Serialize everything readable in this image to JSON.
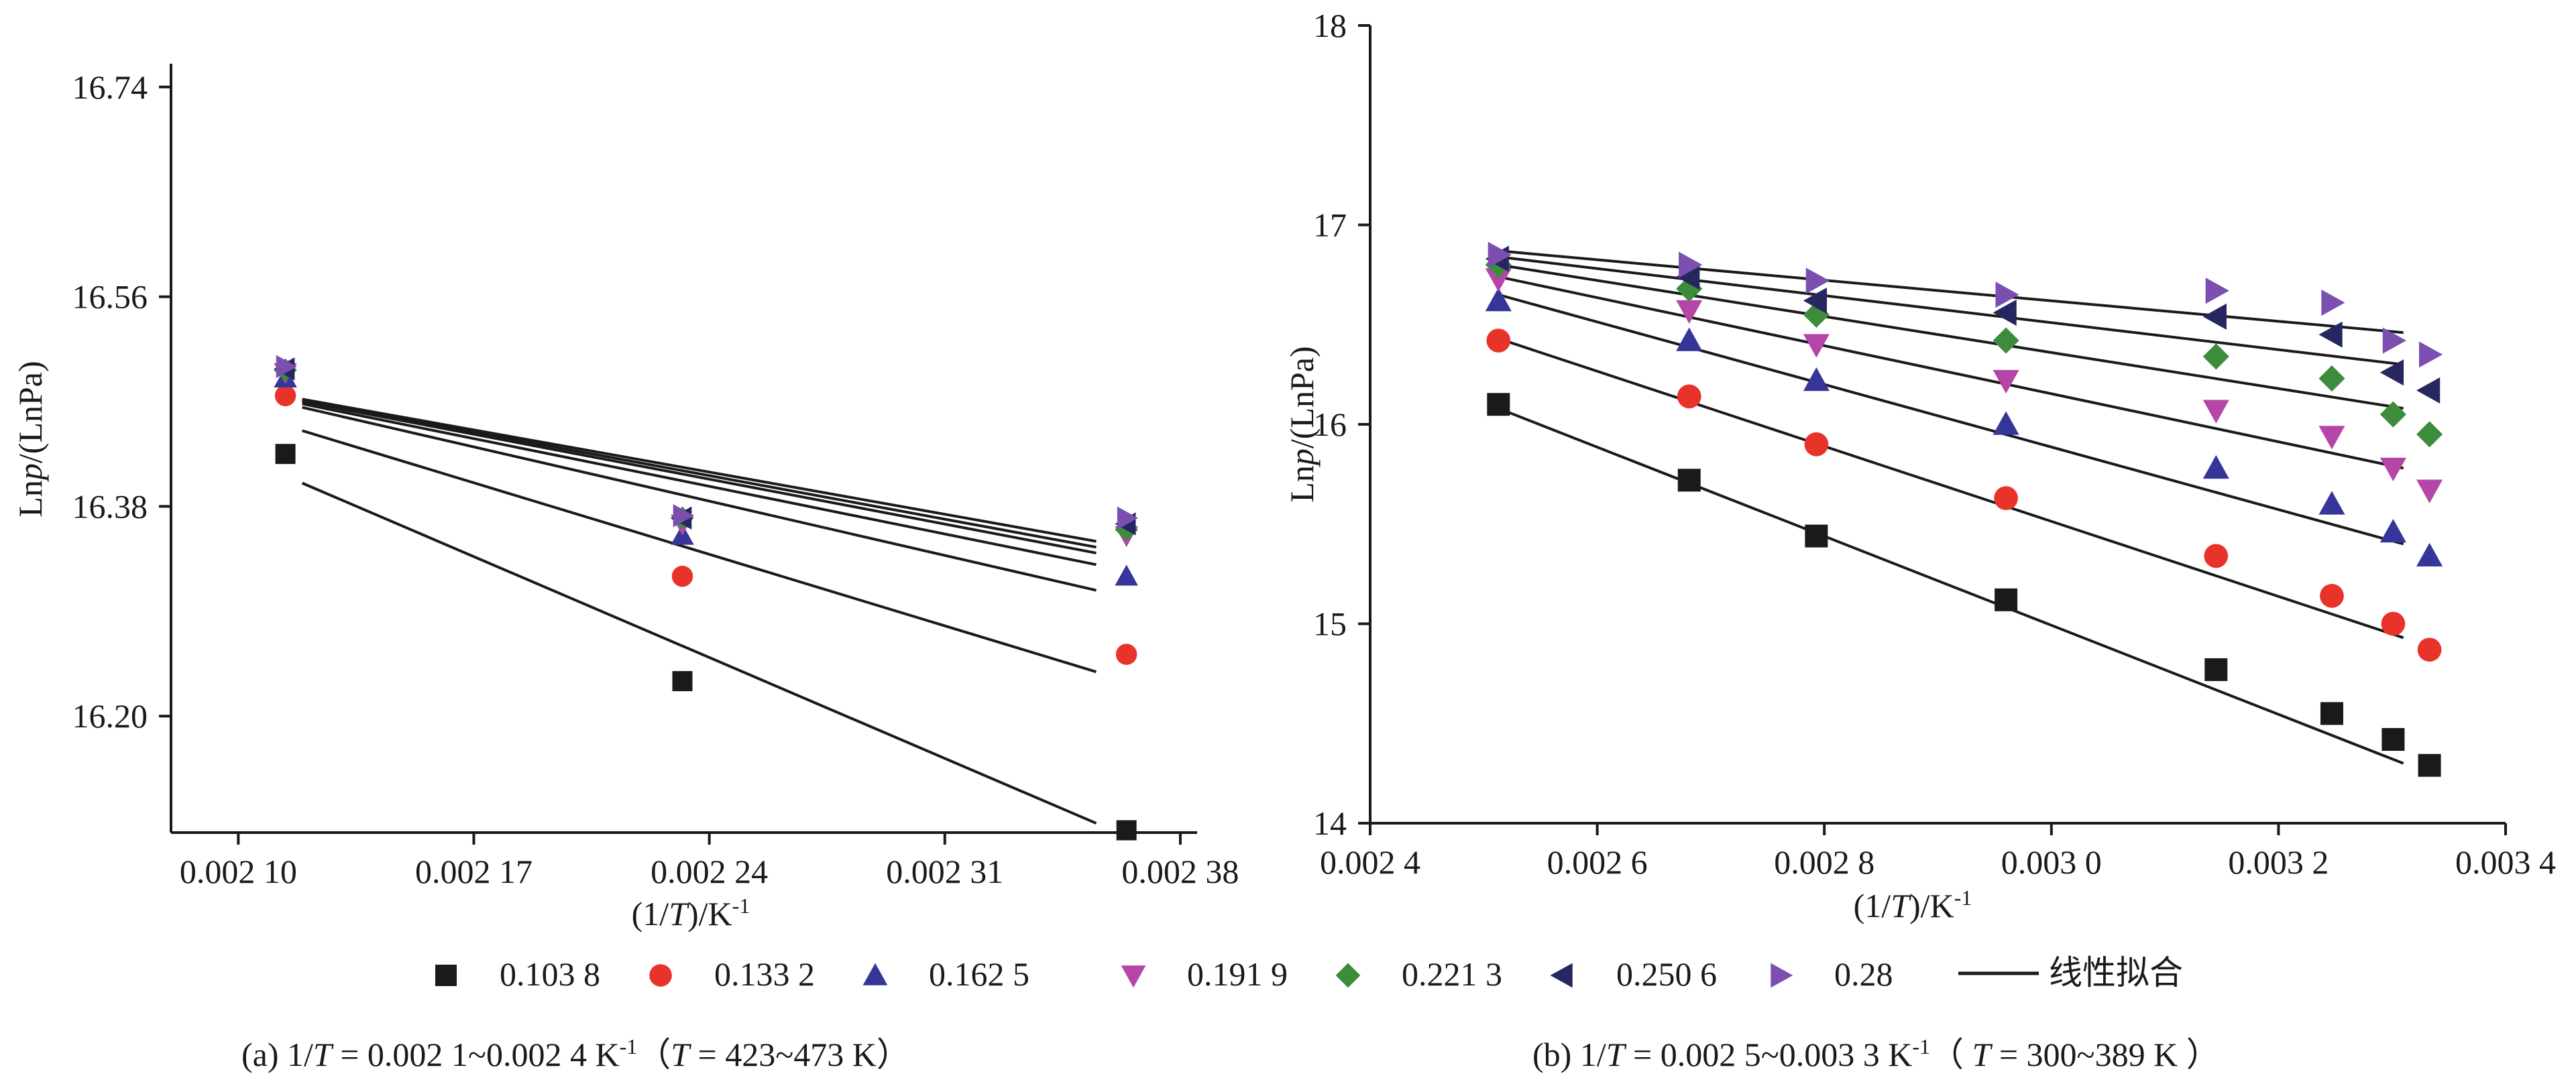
{
  "legend": {
    "items": [
      {
        "label": "0.103 8",
        "marker": "square",
        "color": "#1a1a1a"
      },
      {
        "label": "0.133 2",
        "marker": "circle",
        "color": "#e8332b"
      },
      {
        "label": "0.162 5",
        "marker": "triangle-up",
        "color": "#35359a"
      },
      {
        "label": "0.191 9",
        "marker": "triangle-down",
        "color": "#b546a8"
      },
      {
        "label": "0.221 3",
        "marker": "diamond",
        "color": "#3c8c3c"
      },
      {
        "label": "0.250 6",
        "marker": "triangle-left",
        "color": "#262660"
      },
      {
        "label": "0.28",
        "marker": "triangle-right",
        "color": "#7a4fb0"
      }
    ],
    "fit_label": "线性拟合"
  },
  "chart_data": [
    {
      "type": "scatter",
      "caption_parts": [
        "(a) 1/",
        "T",
        " = 0.002 1~0.002 4 K",
        "-1",
        "（",
        "T",
        " = 423~473 K）"
      ],
      "xlabel_parts": [
        "(1/",
        "T",
        ")/K",
        "-1"
      ],
      "ylabel_parts": [
        "Ln",
        "p",
        "/(LnPa)"
      ],
      "xlim": [
        0.00208,
        0.002385
      ],
      "ylim": [
        16.1,
        16.76
      ],
      "xticks": [
        0.0021,
        0.00217,
        0.00224,
        0.00231,
        0.00238
      ],
      "xtick_labels": [
        "0.002 10",
        "0.002 17",
        "0.002 24",
        "0.002 31",
        "0.002 38"
      ],
      "yticks": [
        16.2,
        16.38,
        16.56,
        16.74
      ],
      "ytick_labels": [
        "16.20",
        "16.38",
        "16.56",
        "16.74"
      ],
      "x": [
        0.002114,
        0.002232,
        0.002364
      ],
      "series": [
        {
          "values": [
            16.425,
            16.23,
            16.102
          ],
          "fit": [
            16.4,
            16.108
          ]
        },
        {
          "values": [
            16.475,
            16.32,
            16.253
          ],
          "fit": [
            16.445,
            16.238
          ]
        },
        {
          "values": [
            16.49,
            16.355,
            16.32
          ],
          "fit": [
            16.465,
            16.308
          ]
        },
        {
          "values": [
            16.495,
            16.365,
            16.355
          ],
          "fit": [
            16.468,
            16.33
          ]
        },
        {
          "values": [
            16.497,
            16.37,
            16.36
          ],
          "fit": [
            16.47,
            16.34
          ]
        },
        {
          "values": [
            16.498,
            16.37,
            16.365
          ],
          "fit": [
            16.471,
            16.345
          ]
        },
        {
          "values": [
            16.5,
            16.372,
            16.37
          ],
          "fit": [
            16.472,
            16.35
          ]
        }
      ]
    },
    {
      "type": "scatter",
      "caption_parts": [
        "(b) 1/",
        "T",
        " = 0.002 5~0.003 3 K",
        "-1",
        "（ ",
        "T",
        " = 300~389 K ）"
      ],
      "xlabel_parts": [
        "(1/",
        "T",
        ")/K",
        "-1"
      ],
      "ylabel_parts": [
        "Ln",
        "p",
        "/(LnPa)"
      ],
      "xlim": [
        0.0024,
        0.0034
      ],
      "ylim": [
        14,
        18
      ],
      "xticks": [
        0.0024,
        0.0026,
        0.0028,
        0.003,
        0.0032,
        0.0034
      ],
      "xtick_labels": [
        "0.002 4",
        "0.002 6",
        "0.002 8",
        "0.003 0",
        "0.003 2",
        "0.003 4"
      ],
      "yticks": [
        14,
        15,
        16,
        17,
        18
      ],
      "ytick_labels": [
        "14",
        "15",
        "16",
        "17",
        "18"
      ],
      "x": [
        0.002513,
        0.002681,
        0.002793,
        0.00296,
        0.003145,
        0.003247,
        0.003301,
        0.003333
      ],
      "series": [
        {
          "values": [
            16.1,
            15.72,
            15.44,
            15.12,
            14.77,
            14.55,
            14.42,
            14.29
          ],
          "fit": [
            16.08,
            14.3
          ]
        },
        {
          "values": [
            16.42,
            16.14,
            15.9,
            15.63,
            15.34,
            15.14,
            15.0,
            14.87
          ],
          "fit": [
            16.43,
            14.93
          ]
        },
        {
          "values": [
            16.62,
            16.42,
            16.22,
            16.0,
            15.78,
            15.6,
            15.46,
            15.34
          ],
          "fit": [
            16.65,
            15.4
          ]
        },
        {
          "values": [
            16.73,
            16.57,
            16.4,
            16.22,
            16.07,
            15.94,
            15.78,
            15.67
          ],
          "fit": [
            16.74,
            15.78
          ]
        },
        {
          "values": [
            16.8,
            16.68,
            16.55,
            16.42,
            16.34,
            16.23,
            16.05,
            15.95
          ],
          "fit": [
            16.8,
            16.08
          ]
        },
        {
          "values": [
            16.83,
            16.74,
            16.62,
            16.56,
            16.54,
            16.45,
            16.26,
            16.17
          ],
          "fit": [
            16.84,
            16.3
          ]
        },
        {
          "values": [
            16.85,
            16.8,
            16.72,
            16.65,
            16.67,
            16.61,
            16.42,
            16.35
          ],
          "fit": [
            16.87,
            16.46
          ]
        }
      ]
    }
  ]
}
